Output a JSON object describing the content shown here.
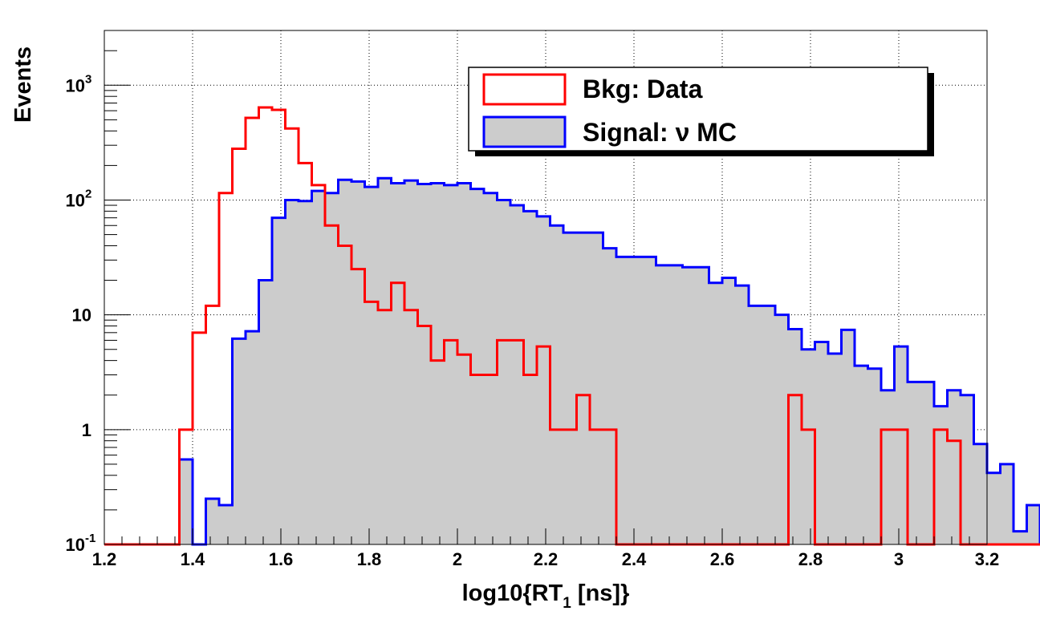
{
  "chart_data": {
    "type": "histogram",
    "title": "",
    "xlabel": "log10{RT",
    "xlabel_sub": "1",
    "xlabel_suffix": " [ns]}",
    "ylabel": "Events",
    "xlim": [
      1.2,
      3.2
    ],
    "ylim": [
      0.1,
      3000
    ],
    "y_scale": "log",
    "grid": true,
    "legend_position": "top-right",
    "bin_edges_start": 1.37,
    "bin_width": 0.03,
    "x_ticks": [
      "1.2",
      "1.4",
      "1.6",
      "1.8",
      "2",
      "2.2",
      "2.4",
      "2.6",
      "2.8",
      "3",
      "3.2"
    ],
    "y_ticks": [
      {
        "value": 0.1,
        "base": "10",
        "exp": "-1"
      },
      {
        "value": 1,
        "base": "1",
        "exp": ""
      },
      {
        "value": 10,
        "base": "10",
        "exp": ""
      },
      {
        "value": 100,
        "base": "10",
        "exp": "2"
      },
      {
        "value": 1000,
        "base": "10",
        "exp": "3"
      }
    ],
    "series": [
      {
        "name": "Signal: ν MC",
        "color": "#0000ff",
        "fill": "#cccccc",
        "values": [
          0.55,
          0.1,
          0.25,
          0.22,
          6.2,
          7.2,
          20,
          70,
          100,
          98,
          120,
          115,
          150,
          145,
          130,
          155,
          140,
          148,
          138,
          140,
          135,
          140,
          125,
          115,
          100,
          90,
          80,
          72,
          60,
          52,
          52,
          52,
          38,
          32,
          32,
          32,
          27,
          27,
          26,
          26,
          19,
          21,
          18,
          12,
          12,
          10,
          7.5,
          5,
          5.8,
          4.6,
          7.4,
          3.6,
          3.4,
          2.2,
          5.3,
          2.6,
          2.6,
          1.6,
          2.2,
          2.0,
          0.75,
          0.42,
          0.5,
          0.13,
          0.22
        ]
      },
      {
        "name": "Bkg: Data",
        "color": "#ff0000",
        "fill": "none",
        "values": [
          1.0,
          7.0,
          12,
          115,
          280,
          520,
          640,
          610,
          420,
          210,
          135,
          60,
          40,
          25,
          13,
          11,
          19,
          11,
          8.0,
          4.0,
          6.0,
          4.5,
          3.0,
          3.0,
          6.0,
          6.0,
          3.0,
          5.3,
          1.0,
          1.0,
          2.0,
          1.0,
          1.0,
          0.1,
          0.1,
          0.1,
          0.1,
          0.1,
          0.1,
          0.1,
          0.1,
          0.1,
          0.1,
          0.1,
          0.1,
          0.1,
          2.0,
          1.0,
          0.1,
          0.1,
          0.1,
          0.1,
          0.1,
          1.0,
          1.0,
          0.1,
          0.1,
          1.0,
          0.8,
          0.1,
          0.1,
          0.1,
          0.1,
          0.1,
          0.1
        ]
      }
    ]
  }
}
